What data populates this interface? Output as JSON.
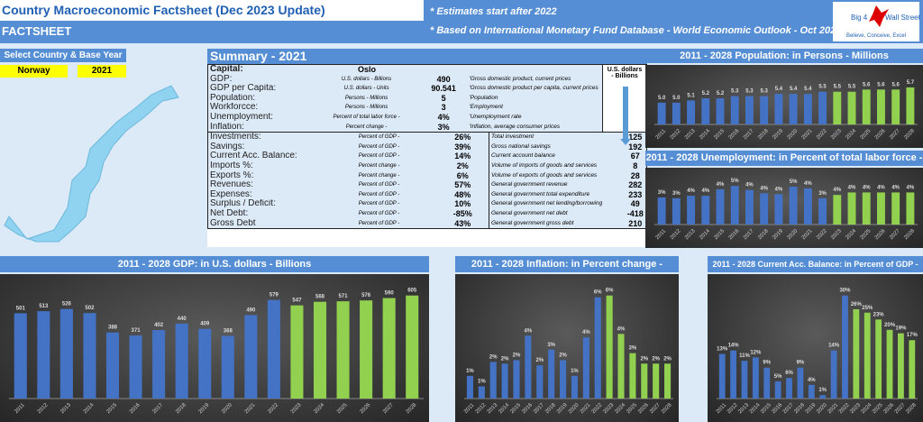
{
  "header": {
    "title": "Country Macroeconomic Factsheet (Dec 2023 Update)",
    "subtitle": "FACTSHEET",
    "note1": "* Estimates start after 2022",
    "note2": "* Based on International Monetary Fund Database - World Economic Outlook - Oct 2023",
    "logo_text": "Big 4 Wall Street",
    "logo_tagline": "Believe, Conceive, Excel"
  },
  "selector": {
    "label": "Select Country & Base Year",
    "country": "Norway",
    "year": "2021"
  },
  "summary": {
    "title": "Summary - 2021",
    "capital_label": "Capital:",
    "capital": "Oslo",
    "usd_header": "U.S. dollars - Billions",
    "rows_top": [
      {
        "label": "GDP:",
        "unit": "U.S. dollars - Billions",
        "value": "490",
        "desc": "'Gross domestic product, current prices"
      },
      {
        "label": "GDP per Capita:",
        "unit": "U.S. dollars - Units",
        "value": "90.541",
        "desc": "'Gross domestic product per capita, current prices"
      },
      {
        "label": "Population:",
        "unit": "Persons - Millions",
        "value": "5",
        "desc": "'Population"
      },
      {
        "label": "Workforcce:",
        "unit": "Persons - Millions",
        "value": "3",
        "desc": "'Employment"
      },
      {
        "label": "Unemployment:",
        "unit": "Percent of total labor force -",
        "value": "4%",
        "desc": "'Unemployment rate"
      },
      {
        "label": "Inflation:",
        "unit": "Percent change -",
        "value": "3%",
        "desc": "'Inflation, average consumer prices"
      }
    ],
    "rows_bottom": [
      {
        "label": "Investments:",
        "unit": "Percent of GDP -",
        "value": "26%",
        "desc": "Total investment",
        "usd": "125"
      },
      {
        "label": "Savings:",
        "unit": "Percent of GDP -",
        "value": "39%",
        "desc": "Gross national savings",
        "usd": "192"
      },
      {
        "label": "Current Acc. Balance:",
        "unit": "Percent of GDP -",
        "value": "14%",
        "desc": "Current account balance",
        "usd": "67"
      },
      {
        "label": "Imports %:",
        "unit": "Percent change -",
        "value": "2%",
        "desc": "Volume of imports of goods and services",
        "usd": "8"
      },
      {
        "label": "Exports %:",
        "unit": "Percent change -",
        "value": "6%",
        "desc": "Volume of exports of goods and services",
        "usd": "28"
      },
      {
        "label": "Revenues:",
        "unit": "Percent of GDP -",
        "value": "57%",
        "desc": "General government revenue",
        "usd": "282"
      },
      {
        "label": "Expenses:",
        "unit": "Percent of GDP -",
        "value": "48%",
        "desc": "General government total expenditure",
        "usd": "233"
      },
      {
        "label": "Surplus / Deficit:",
        "unit": "Percent of GDP -",
        "value": "10%",
        "desc": "General government net lending/borrowing",
        "usd": "49"
      },
      {
        "label": "Net Debt:",
        "unit": "Percent of GDP -",
        "value": "-85%",
        "desc": "General government net debt",
        "usd": "-418"
      },
      {
        "label": "Gross Debt",
        "unit": "Percent of GDP -",
        "value": "43%",
        "desc": "General government gross debt",
        "usd": "210"
      }
    ]
  },
  "colors": {
    "actual": "#4472c4",
    "estimate": "#92d050",
    "header": "#558ed5",
    "selector": "#ffff00"
  },
  "chart_data": [
    {
      "id": "population",
      "type": "bar",
      "title": "2011 - 2028 Population: in Persons - Millions",
      "categories": [
        "2011",
        "2012",
        "2013",
        "2014",
        "2015",
        "2016",
        "2017",
        "2018",
        "2019",
        "2020",
        "2021",
        "2022",
        "2023",
        "2024",
        "2025",
        "2026",
        "2027",
        "2028"
      ],
      "values": [
        5.0,
        5.0,
        5.1,
        5.2,
        5.2,
        5.3,
        5.3,
        5.3,
        5.4,
        5.4,
        5.4,
        5.5,
        5.5,
        5.5,
        5.6,
        5.6,
        5.6,
        5.7
      ],
      "estimates_from": "2023",
      "label_format": "1dp"
    },
    {
      "id": "unemployment",
      "type": "bar",
      "title": "2011 - 2028 Unemployment: in Percent of total labor force -",
      "categories": [
        "2011",
        "2012",
        "2013",
        "2014",
        "2015",
        "2016",
        "2017",
        "2018",
        "2019",
        "2020",
        "2021",
        "2022",
        "2023",
        "2024",
        "2025",
        "2026",
        "2027",
        "2028"
      ],
      "values": [
        3.3,
        3.2,
        3.5,
        3.5,
        4.3,
        4.7,
        4.2,
        3.8,
        3.7,
        4.6,
        4.4,
        3.2,
        3.6,
        3.9,
        3.9,
        3.9,
        3.9,
        3.9
      ],
      "estimates_from": "2023",
      "label_format": "pct"
    },
    {
      "id": "gdp",
      "type": "bar",
      "title": "2011 - 2028 GDP: in U.S. dollars - Billions",
      "categories": [
        "2011",
        "2012",
        "2013",
        "2014",
        "2015",
        "2016",
        "2017",
        "2018",
        "2019",
        "2020",
        "2021",
        "2022",
        "2023",
        "2024",
        "2025",
        "2026",
        "2027",
        "2028"
      ],
      "values": [
        501,
        513,
        526,
        502,
        388,
        371,
        402,
        440,
        409,
        368,
        490,
        579,
        547,
        568,
        571,
        576,
        590,
        605
      ],
      "estimates_from": "2023",
      "label_format": "int"
    },
    {
      "id": "inflation",
      "type": "bar",
      "title": "2011 - 2028 Inflation: in Percent change -",
      "categories": [
        "2011",
        "2012",
        "2013",
        "2014",
        "2015",
        "2016",
        "2017",
        "2018",
        "2019",
        "2020",
        "2021",
        "2022",
        "2023",
        "2024",
        "2025",
        "2026",
        "2027",
        "2028"
      ],
      "values": [
        1.3,
        0.7,
        2.1,
        2.0,
        2.2,
        3.6,
        1.9,
        2.8,
        2.2,
        1.3,
        3.5,
        5.8,
        5.9,
        3.7,
        2.6,
        2.0,
        2.0,
        2.0
      ],
      "estimates_from": "2023",
      "label_format": "pct"
    },
    {
      "id": "current_account",
      "type": "bar",
      "title": "2011 - 2028 Current Acc. Balance: in Percent of GDP -",
      "categories": [
        "2011",
        "2012",
        "2013",
        "2014",
        "2015",
        "2016",
        "2017",
        "2018",
        "2019",
        "2020",
        "2021",
        "2022",
        "2023",
        "2024",
        "2025",
        "2026",
        "2027",
        "2028"
      ],
      "values": [
        13,
        14,
        11,
        12,
        9,
        5,
        6,
        9,
        4,
        1,
        14,
        30,
        26,
        25,
        23,
        20,
        19,
        17
      ],
      "estimates_from": "2023",
      "label_format": "pct"
    }
  ]
}
